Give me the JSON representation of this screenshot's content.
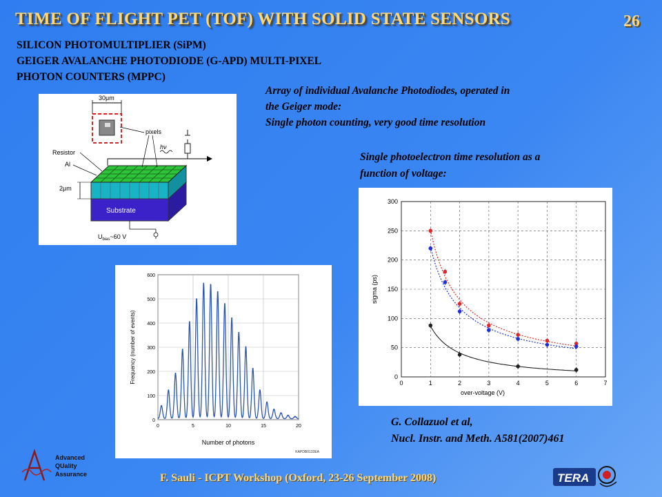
{
  "slide": {
    "title": "TIME OF FLIGHT PET (TOF) WITH SOLID STATE SENSORS",
    "number": "26",
    "heading_lines": [
      "SILICON PHOTOMULTIPLIER (SiPM)",
      "GEIGER AVALANCHE PHOTODIODE (G-APD) MULTI-PIXEL",
      "PHOTON COUNTERS (MPPC)"
    ],
    "description_lines": [
      "Array of individual Avalanche Photodiodes, operated in",
      "the Geiger mode:",
      "Single photon counting, very good time resolution"
    ],
    "resolution_caption_lines": [
      "Single photoelectron time resolution as a",
      "function of voltage:"
    ],
    "reference_lines": [
      "G. Collazuol et al,",
      "Nucl. Instr. and Meth. A581(2007)461"
    ],
    "footer": "F. Sauli - ICPT Workshop (Oxford, 23-26 September 2008)"
  },
  "diagram": {
    "dim_30um": "30μm",
    "label_pixels": "pixels",
    "label_hv": "hν",
    "label_resistor": "Resistor",
    "label_al": "Al",
    "dim_2um": "2μm",
    "label_substrate": "Substrate",
    "label_ubias_prefix": "U",
    "label_ubias_sub": "bias",
    "label_ubias_value": "~60 V",
    "colors": {
      "grid_green": "#2ec43a",
      "layer_cyan": "#19b3c6",
      "substrate": "#3a22c8",
      "highlight": "#e02020"
    }
  },
  "logos": {
    "aqa_lines": [
      "Advanced",
      "QUality",
      "Assurance"
    ],
    "tera_text": "TERA"
  },
  "chart_data": [
    {
      "type": "line",
      "name": "photon-count-histogram",
      "xlabel": "Number of photons",
      "ylabel": "Frequency (number of events)",
      "xlim": [
        0,
        20
      ],
      "ylim": [
        0,
        600
      ],
      "x_ticks": [
        "0",
        "5",
        "10",
        "15",
        "20"
      ],
      "y_ticks": [
        "0",
        "100",
        "200",
        "300",
        "400",
        "500",
        "600"
      ],
      "annotation": "KAPDB0133EA",
      "grid": true,
      "color": "#2a55b0",
      "peaks": [
        {
          "x": 0.5,
          "y": 55
        },
        {
          "x": 1.5,
          "y": 120
        },
        {
          "x": 2.5,
          "y": 190
        },
        {
          "x": 3.5,
          "y": 290
        },
        {
          "x": 4.5,
          "y": 405
        },
        {
          "x": 5.5,
          "y": 500
        },
        {
          "x": 6.5,
          "y": 565
        },
        {
          "x": 7.5,
          "y": 560
        },
        {
          "x": 8.5,
          "y": 530
        },
        {
          "x": 9.5,
          "y": 480
        },
        {
          "x": 10.5,
          "y": 420
        },
        {
          "x": 11.5,
          "y": 360
        },
        {
          "x": 12.5,
          "y": 300
        },
        {
          "x": 13.5,
          "y": 210
        },
        {
          "x": 14.5,
          "y": 120
        },
        {
          "x": 15.5,
          "y": 70
        },
        {
          "x": 16.5,
          "y": 40
        },
        {
          "x": 17.5,
          "y": 25
        },
        {
          "x": 18.5,
          "y": 15
        },
        {
          "x": 19.5,
          "y": 10
        }
      ]
    },
    {
      "type": "scatter",
      "name": "time-resolution-vs-overvoltage",
      "xlabel": "over-voltage (V)",
      "ylabel": "sigma (ps)",
      "xlim": [
        0,
        7
      ],
      "ylim": [
        0,
        300
      ],
      "x_ticks": [
        "0",
        "1",
        "2",
        "3",
        "4",
        "5",
        "6",
        "7"
      ],
      "y_ticks": [
        "0",
        "50",
        "100",
        "150",
        "200",
        "250",
        "300"
      ],
      "grid": true,
      "series": [
        {
          "color": "#e02828",
          "style": "dotted",
          "x": [
            1,
            1.5,
            2,
            3,
            4,
            5,
            6
          ],
          "y": [
            250,
            180,
            125,
            88,
            72,
            62,
            57
          ]
        },
        {
          "color": "#2030d8",
          "style": "dotted",
          "x": [
            1,
            1.5,
            2,
            3,
            4,
            5,
            6
          ],
          "y": [
            220,
            162,
            112,
            80,
            65,
            55,
            52
          ]
        },
        {
          "color": "#202020",
          "style": "solid",
          "x": [
            1,
            2,
            4,
            6
          ],
          "y": [
            88,
            38,
            18,
            12
          ]
        }
      ]
    }
  ]
}
